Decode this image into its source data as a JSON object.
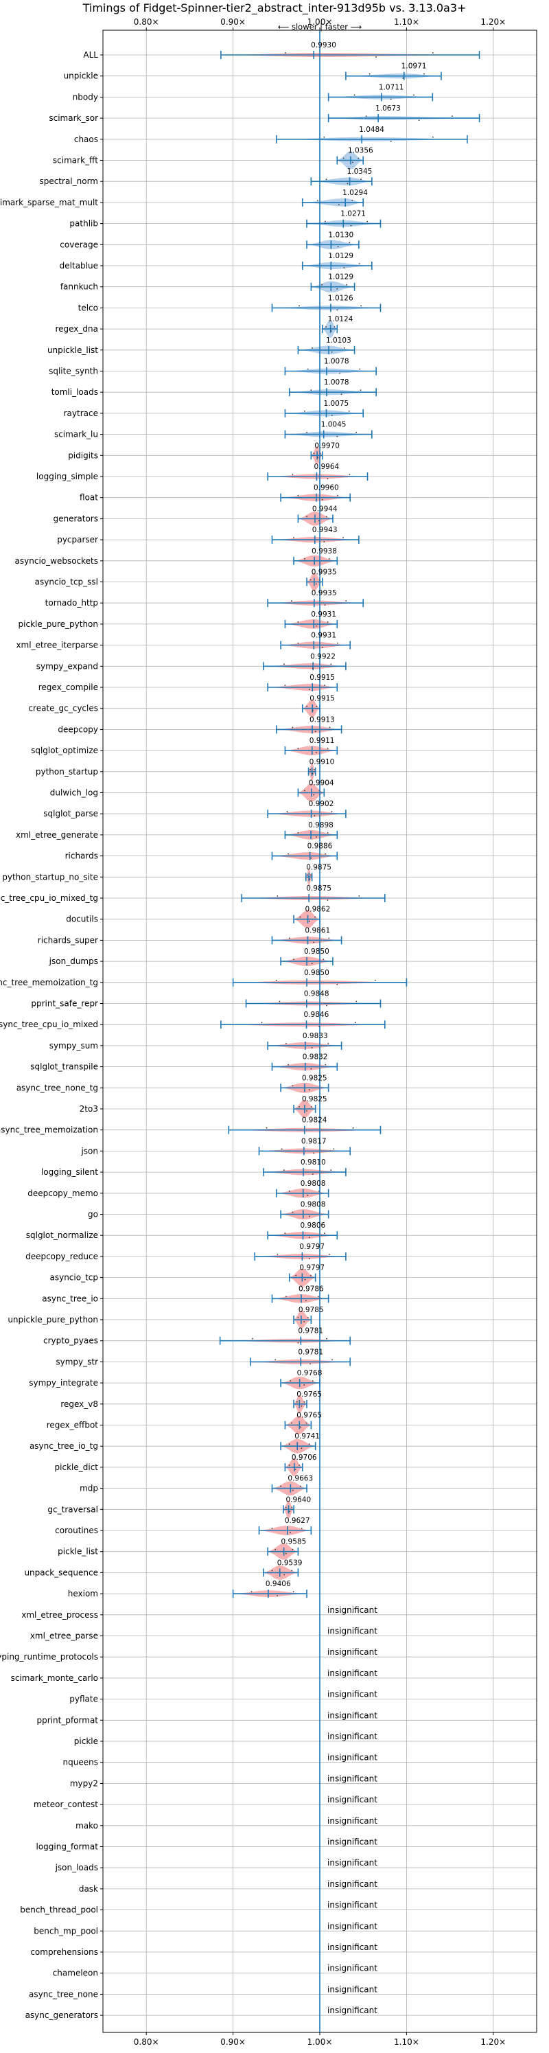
{
  "chart_data": {
    "type": "violin",
    "title": "Timings of Fidget-Spinner-tier2_abstract_inter-913d95b vs. 3.13.0a3+",
    "direction_label": "⟵ slower | faster ⟶",
    "xlim": [
      0.75,
      1.25
    ],
    "x_ticks": [
      0.8,
      0.9,
      1.0,
      1.1,
      1.2
    ],
    "x_tick_labels": [
      "0.80×",
      "0.90×",
      "1.00×",
      "1.10×",
      "1.20×"
    ],
    "reference_line": 1.0,
    "grid": true,
    "colors": {
      "faster": "#a8c8e8",
      "slower": "#f4a3a6",
      "line": "#1f77b4",
      "grid": "#b0b0b0"
    },
    "insignificant_label": "insignificant",
    "benchmarks": [
      {
        "name": "ALL",
        "value": 0.993,
        "label": "0.9930",
        "sig": true,
        "lo": 0.886,
        "hi": 1.184
      },
      {
        "name": "unpickle",
        "value": 1.0971,
        "label": "1.0971",
        "sig": true,
        "lo": 1.03,
        "hi": 1.14
      },
      {
        "name": "nbody",
        "value": 1.0711,
        "label": "1.0711",
        "sig": true,
        "lo": 1.01,
        "hi": 1.13
      },
      {
        "name": "scimark_sor",
        "value": 1.0673,
        "label": "1.0673",
        "sig": true,
        "lo": 1.01,
        "hi": 1.184
      },
      {
        "name": "chaos",
        "value": 1.0484,
        "label": "1.0484",
        "sig": true,
        "lo": 0.95,
        "hi": 1.17
      },
      {
        "name": "scimark_fft",
        "value": 1.0356,
        "label": "1.0356",
        "sig": true,
        "lo": 1.02,
        "hi": 1.05
      },
      {
        "name": "spectral_norm",
        "value": 1.0345,
        "label": "1.0345",
        "sig": true,
        "lo": 0.99,
        "hi": 1.06
      },
      {
        "name": "scimark_sparse_mat_mult",
        "value": 1.0294,
        "label": "1.0294",
        "sig": true,
        "lo": 0.98,
        "hi": 1.05
      },
      {
        "name": "pathlib",
        "value": 1.0271,
        "label": "1.0271",
        "sig": true,
        "lo": 0.985,
        "hi": 1.07
      },
      {
        "name": "coverage",
        "value": 1.013,
        "label": "1.0130",
        "sig": true,
        "lo": 0.985,
        "hi": 1.045
      },
      {
        "name": "deltablue",
        "value": 1.0129,
        "label": "1.0129",
        "sig": true,
        "lo": 0.98,
        "hi": 1.06
      },
      {
        "name": "fannkuch",
        "value": 1.0129,
        "label": "1.0129",
        "sig": true,
        "lo": 0.99,
        "hi": 1.04
      },
      {
        "name": "telco",
        "value": 1.0126,
        "label": "1.0126",
        "sig": true,
        "lo": 0.945,
        "hi": 1.07
      },
      {
        "name": "regex_dna",
        "value": 1.0124,
        "label": "1.0124",
        "sig": true,
        "lo": 1.003,
        "hi": 1.02
      },
      {
        "name": "unpickle_list",
        "value": 1.0103,
        "label": "1.0103",
        "sig": true,
        "lo": 0.975,
        "hi": 1.04
      },
      {
        "name": "sqlite_synth",
        "value": 1.0078,
        "label": "1.0078",
        "sig": true,
        "lo": 0.96,
        "hi": 1.065
      },
      {
        "name": "tomli_loads",
        "value": 1.0078,
        "label": "1.0078",
        "sig": true,
        "lo": 0.965,
        "hi": 1.065
      },
      {
        "name": "raytrace",
        "value": 1.0075,
        "label": "1.0075",
        "sig": true,
        "lo": 0.96,
        "hi": 1.05
      },
      {
        "name": "scimark_lu",
        "value": 1.0045,
        "label": "1.0045",
        "sig": true,
        "lo": 0.96,
        "hi": 1.06
      },
      {
        "name": "pidigits",
        "value": 0.997,
        "label": "0.9970",
        "sig": true,
        "lo": 0.99,
        "hi": 1.003
      },
      {
        "name": "logging_simple",
        "value": 0.9964,
        "label": "0.9964",
        "sig": true,
        "lo": 0.94,
        "hi": 1.055
      },
      {
        "name": "float",
        "value": 0.996,
        "label": "0.9960",
        "sig": true,
        "lo": 0.955,
        "hi": 1.035
      },
      {
        "name": "generators",
        "value": 0.9944,
        "label": "0.9944",
        "sig": true,
        "lo": 0.975,
        "hi": 1.015
      },
      {
        "name": "pycparser",
        "value": 0.9943,
        "label": "0.9943",
        "sig": true,
        "lo": 0.945,
        "hi": 1.045
      },
      {
        "name": "asyncio_websockets",
        "value": 0.9938,
        "label": "0.9938",
        "sig": true,
        "lo": 0.97,
        "hi": 1.02
      },
      {
        "name": "asyncio_tcp_ssl",
        "value": 0.9935,
        "label": "0.9935",
        "sig": true,
        "lo": 0.985,
        "hi": 1.003
      },
      {
        "name": "tornado_http",
        "value": 0.9935,
        "label": "0.9935",
        "sig": true,
        "lo": 0.94,
        "hi": 1.05
      },
      {
        "name": "pickle_pure_python",
        "value": 0.9931,
        "label": "0.9931",
        "sig": true,
        "lo": 0.96,
        "hi": 1.02
      },
      {
        "name": "xml_etree_iterparse",
        "value": 0.9931,
        "label": "0.9931",
        "sig": true,
        "lo": 0.955,
        "hi": 1.035
      },
      {
        "name": "sympy_expand",
        "value": 0.9922,
        "label": "0.9922",
        "sig": true,
        "lo": 0.935,
        "hi": 1.03
      },
      {
        "name": "regex_compile",
        "value": 0.9915,
        "label": "0.9915",
        "sig": true,
        "lo": 0.94,
        "hi": 1.02
      },
      {
        "name": "create_gc_cycles",
        "value": 0.9915,
        "label": "0.9915",
        "sig": true,
        "lo": 0.98,
        "hi": 1.0
      },
      {
        "name": "deepcopy",
        "value": 0.9913,
        "label": "0.9913",
        "sig": true,
        "lo": 0.95,
        "hi": 1.025
      },
      {
        "name": "sqlglot_optimize",
        "value": 0.9911,
        "label": "0.9911",
        "sig": true,
        "lo": 0.96,
        "hi": 1.02
      },
      {
        "name": "python_startup",
        "value": 0.991,
        "label": "0.9910",
        "sig": true,
        "lo": 0.987,
        "hi": 0.995
      },
      {
        "name": "dulwich_log",
        "value": 0.9904,
        "label": "0.9904",
        "sig": true,
        "lo": 0.975,
        "hi": 1.005
      },
      {
        "name": "sqlglot_parse",
        "value": 0.9902,
        "label": "0.9902",
        "sig": true,
        "lo": 0.94,
        "hi": 1.03
      },
      {
        "name": "xml_etree_generate",
        "value": 0.9898,
        "label": "0.9898",
        "sig": true,
        "lo": 0.96,
        "hi": 1.02
      },
      {
        "name": "richards",
        "value": 0.9886,
        "label": "0.9886",
        "sig": true,
        "lo": 0.945,
        "hi": 1.02
      },
      {
        "name": "python_startup_no_site",
        "value": 0.9875,
        "label": "0.9875",
        "sig": true,
        "lo": 0.984,
        "hi": 0.991
      },
      {
        "name": "async_tree_cpu_io_mixed_tg",
        "value": 0.9875,
        "label": "0.9875",
        "sig": true,
        "lo": 0.91,
        "hi": 1.075
      },
      {
        "name": "docutils",
        "value": 0.9862,
        "label": "0.9862",
        "sig": true,
        "lo": 0.97,
        "hi": 1.0
      },
      {
        "name": "richards_super",
        "value": 0.9861,
        "label": "0.9861",
        "sig": true,
        "lo": 0.945,
        "hi": 1.025
      },
      {
        "name": "json_dumps",
        "value": 0.985,
        "label": "0.9850",
        "sig": true,
        "lo": 0.955,
        "hi": 1.015
      },
      {
        "name": "async_tree_memoization_tg",
        "value": 0.985,
        "label": "0.9850",
        "sig": true,
        "lo": 0.9,
        "hi": 1.1
      },
      {
        "name": "pprint_safe_repr",
        "value": 0.9848,
        "label": "0.9848",
        "sig": true,
        "lo": 0.915,
        "hi": 1.07
      },
      {
        "name": "async_tree_cpu_io_mixed",
        "value": 0.9846,
        "label": "0.9846",
        "sig": true,
        "lo": 0.886,
        "hi": 1.075
      },
      {
        "name": "sympy_sum",
        "value": 0.9833,
        "label": "0.9833",
        "sig": true,
        "lo": 0.94,
        "hi": 1.025
      },
      {
        "name": "sqlglot_transpile",
        "value": 0.9832,
        "label": "0.9832",
        "sig": true,
        "lo": 0.945,
        "hi": 1.02
      },
      {
        "name": "async_tree_none_tg",
        "value": 0.9825,
        "label": "0.9825",
        "sig": true,
        "lo": 0.955,
        "hi": 1.01
      },
      {
        "name": "2to3",
        "value": 0.9825,
        "label": "0.9825",
        "sig": true,
        "lo": 0.97,
        "hi": 0.995
      },
      {
        "name": "async_tree_memoization",
        "value": 0.9824,
        "label": "0.9824",
        "sig": true,
        "lo": 0.895,
        "hi": 1.07
      },
      {
        "name": "json",
        "value": 0.9817,
        "label": "0.9817",
        "sig": true,
        "lo": 0.93,
        "hi": 1.035
      },
      {
        "name": "logging_silent",
        "value": 0.981,
        "label": "0.9810",
        "sig": true,
        "lo": 0.935,
        "hi": 1.03
      },
      {
        "name": "deepcopy_memo",
        "value": 0.9808,
        "label": "0.9808",
        "sig": true,
        "lo": 0.95,
        "hi": 1.01
      },
      {
        "name": "go",
        "value": 0.9808,
        "label": "0.9808",
        "sig": true,
        "lo": 0.955,
        "hi": 1.01
      },
      {
        "name": "sqlglot_normalize",
        "value": 0.9806,
        "label": "0.9806",
        "sig": true,
        "lo": 0.94,
        "hi": 1.02
      },
      {
        "name": "deepcopy_reduce",
        "value": 0.9797,
        "label": "0.9797",
        "sig": true,
        "lo": 0.925,
        "hi": 1.03
      },
      {
        "name": "asyncio_tcp",
        "value": 0.9797,
        "label": "0.9797",
        "sig": true,
        "lo": 0.965,
        "hi": 0.995
      },
      {
        "name": "async_tree_io",
        "value": 0.9786,
        "label": "0.9786",
        "sig": true,
        "lo": 0.945,
        "hi": 1.01
      },
      {
        "name": "unpickle_pure_python",
        "value": 0.9785,
        "label": "0.9785",
        "sig": true,
        "lo": 0.97,
        "hi": 0.99
      },
      {
        "name": "crypto_pyaes",
        "value": 0.9781,
        "label": "0.9781",
        "sig": true,
        "lo": 0.885,
        "hi": 1.035
      },
      {
        "name": "sympy_str",
        "value": 0.9781,
        "label": "0.9781",
        "sig": true,
        "lo": 0.92,
        "hi": 1.035
      },
      {
        "name": "sympy_integrate",
        "value": 0.9768,
        "label": "0.9768",
        "sig": true,
        "lo": 0.955,
        "hi": 1.0
      },
      {
        "name": "regex_v8",
        "value": 0.9765,
        "label": "0.9765",
        "sig": true,
        "lo": 0.97,
        "hi": 0.985
      },
      {
        "name": "regex_effbot",
        "value": 0.9765,
        "label": "0.9765",
        "sig": true,
        "lo": 0.96,
        "hi": 0.99
      },
      {
        "name": "async_tree_io_tg",
        "value": 0.9741,
        "label": "0.9741",
        "sig": true,
        "lo": 0.955,
        "hi": 0.995
      },
      {
        "name": "pickle_dict",
        "value": 0.9706,
        "label": "0.9706",
        "sig": true,
        "lo": 0.96,
        "hi": 0.98
      },
      {
        "name": "mdp",
        "value": 0.9663,
        "label": "0.9663",
        "sig": true,
        "lo": 0.945,
        "hi": 0.985
      },
      {
        "name": "gc_traversal",
        "value": 0.964,
        "label": "0.9640",
        "sig": true,
        "lo": 0.958,
        "hi": 0.97
      },
      {
        "name": "coroutines",
        "value": 0.9627,
        "label": "0.9627",
        "sig": true,
        "lo": 0.93,
        "hi": 0.99
      },
      {
        "name": "pickle_list",
        "value": 0.9585,
        "label": "0.9585",
        "sig": true,
        "lo": 0.94,
        "hi": 0.975
      },
      {
        "name": "unpack_sequence",
        "value": 0.9539,
        "label": "0.9539",
        "sig": true,
        "lo": 0.935,
        "hi": 0.975
      },
      {
        "name": "hexiom",
        "value": 0.9406,
        "label": "0.9406",
        "sig": true,
        "lo": 0.9,
        "hi": 0.985
      },
      {
        "name": "xml_etree_process",
        "sig": false
      },
      {
        "name": "xml_etree_parse",
        "sig": false
      },
      {
        "name": "typing_runtime_protocols",
        "sig": false
      },
      {
        "name": "scimark_monte_carlo",
        "sig": false
      },
      {
        "name": "pyflate",
        "sig": false
      },
      {
        "name": "pprint_pformat",
        "sig": false
      },
      {
        "name": "pickle",
        "sig": false
      },
      {
        "name": "nqueens",
        "sig": false
      },
      {
        "name": "mypy2",
        "sig": false
      },
      {
        "name": "meteor_contest",
        "sig": false
      },
      {
        "name": "mako",
        "sig": false
      },
      {
        "name": "logging_format",
        "sig": false
      },
      {
        "name": "json_loads",
        "sig": false
      },
      {
        "name": "dask",
        "sig": false
      },
      {
        "name": "bench_thread_pool",
        "sig": false
      },
      {
        "name": "bench_mp_pool",
        "sig": false
      },
      {
        "name": "comprehensions",
        "sig": false
      },
      {
        "name": "chameleon",
        "sig": false
      },
      {
        "name": "async_tree_none",
        "sig": false
      },
      {
        "name": "async_generators",
        "sig": false
      }
    ]
  }
}
